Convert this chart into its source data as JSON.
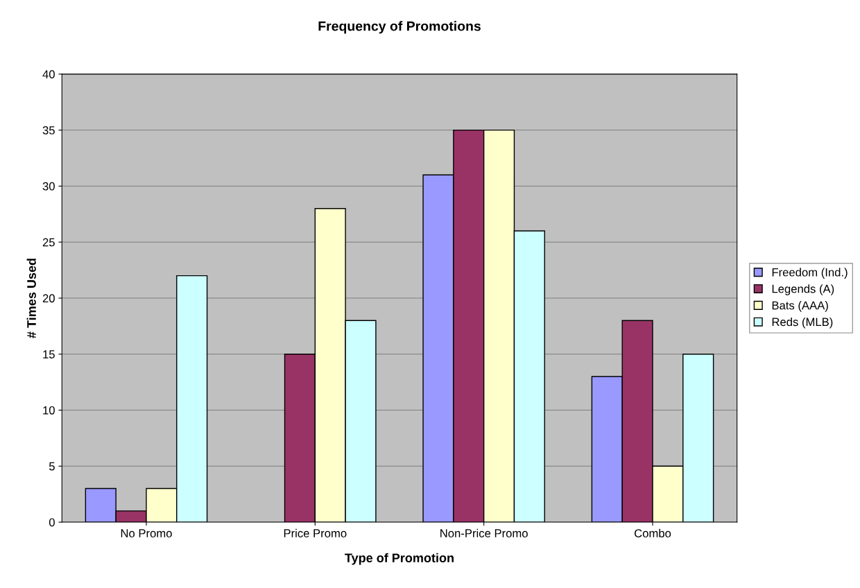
{
  "chart_data": {
    "type": "bar",
    "title": "Frequency of Promotions",
    "xlabel": "Type of Promotion",
    "ylabel": "# Times Used",
    "categories": [
      "No Promo",
      "Price Promo",
      "Non-Price Promo",
      "Combo"
    ],
    "series": [
      {
        "name": "Freedom (Ind.)",
        "color": "#9999ff",
        "values": [
          3,
          null,
          31,
          13
        ]
      },
      {
        "name": "Legends (A)",
        "color": "#993366",
        "values": [
          1,
          15,
          35,
          18
        ]
      },
      {
        "name": "Bats (AAA)",
        "color": "#ffffcc",
        "values": [
          3,
          28,
          35,
          5
        ]
      },
      {
        "name": "Reds (MLB)",
        "color": "#ccffff",
        "values": [
          22,
          18,
          26,
          15
        ]
      }
    ],
    "ylim": [
      0,
      40
    ],
    "yticks": [
      0,
      5,
      10,
      15,
      20,
      25,
      30,
      35,
      40
    ],
    "grid": "y",
    "legend": "right"
  }
}
